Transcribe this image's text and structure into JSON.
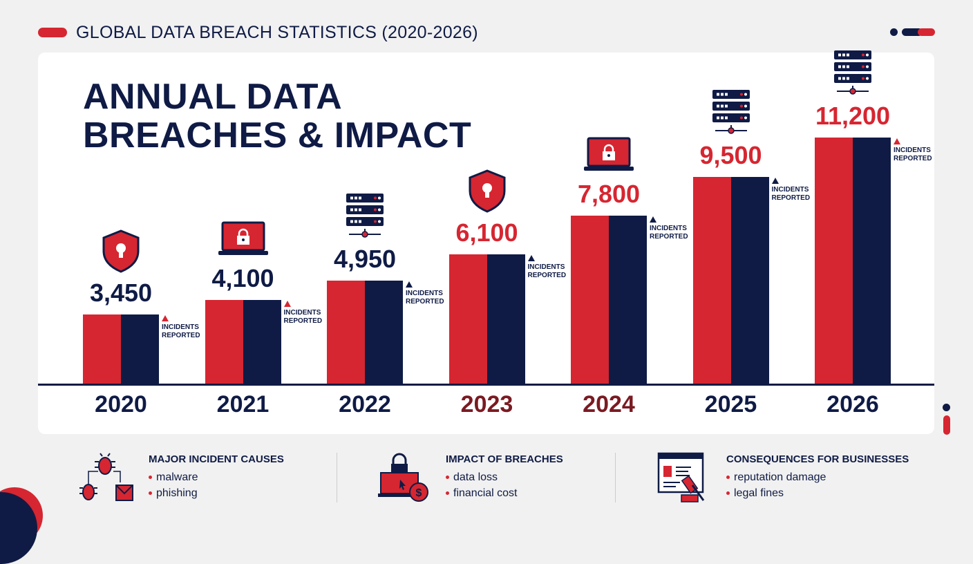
{
  "header": {
    "title": "GLOBAL DATA BREACH STATISTICS (2020-2026)"
  },
  "main_title": [
    "ANNUAL DATA",
    "BREACHES & IMPACT"
  ],
  "colors": {
    "red": "#d62631",
    "navy": "#0f1b45",
    "dark_red": "#7a1a22"
  },
  "chart_data": {
    "type": "bar",
    "title": "ANNUAL DATA BREACHES & IMPACT",
    "categories": [
      "2020",
      "2021",
      "2022",
      "2023",
      "2024",
      "2025",
      "2026"
    ],
    "values": [
      3450,
      4100,
      4950,
      6100,
      7800,
      9500,
      11200
    ],
    "value_labels": [
      "3,450",
      "4,100",
      "4,950",
      "6,100",
      "7,800",
      "9,500",
      "11,200"
    ],
    "icons": [
      "shield-icon",
      "laptop-lock-icon",
      "server-icon",
      "shield-icon",
      "laptop-lock-icon",
      "server-icon",
      "server-icon"
    ],
    "annotation": [
      "INCIDENTS",
      "REPORTED"
    ],
    "xlabel": "",
    "ylabel": ""
  },
  "sections": [
    {
      "title": "MAJOR INCIDENT CAUSES",
      "items": [
        "malware",
        "phishing"
      ]
    },
    {
      "title": "IMPACT OF BREACHES",
      "items": [
        "data loss",
        "financial cost"
      ]
    },
    {
      "title": "CONSEQUENCES FOR BUSINESSES",
      "items": [
        "reputation damage",
        "legal fines"
      ]
    }
  ]
}
